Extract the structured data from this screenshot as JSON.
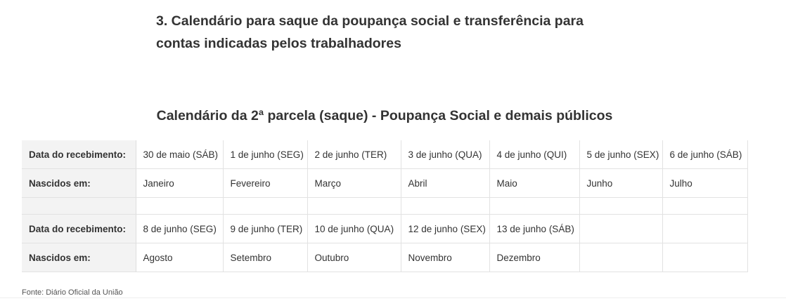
{
  "header": {
    "title_line1": "3. Calendário para saque da poupança social e transferência para",
    "title_line2": "contas indicadas pelos trabalhadores"
  },
  "table": {
    "title": "Calendário da 2ª parcela (saque) - Poupança Social e demais públicos",
    "rows": [
      [
        "Data do recebimento:",
        "30 de maio (SÁB)",
        "1 de junho (SEG)",
        "2 de junho (TER)",
        "3 de junho (QUA)",
        "4 de junho (QUI)",
        "5 de junho (SEX)",
        "6 de junho (SÁB)"
      ],
      [
        "Nascidos em:",
        "Janeiro",
        "Fevereiro",
        "Março",
        "Abril",
        "Maio",
        "Junho",
        "Julho"
      ],
      [
        "Data do recebimento:",
        "8 de junho (SEG)",
        "9 de junho (TER)",
        "10 de junho (QUA)",
        "12 de junho (SEX)",
        "13 de junho (SÁB)"
      ],
      [
        "Nascidos em:",
        "Agosto",
        "Setembro",
        "Outubro",
        "Novembro",
        "Dezembro"
      ]
    ]
  },
  "source": "Fonte: Diário Oficial da União"
}
